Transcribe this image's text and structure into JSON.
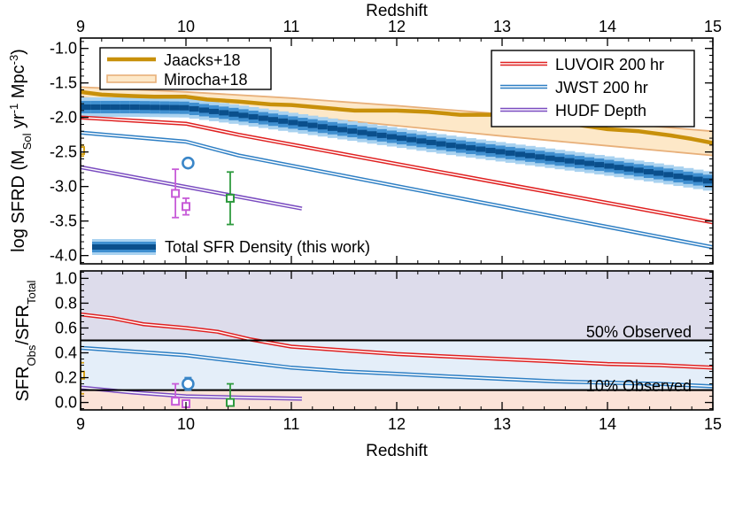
{
  "chart_data": [
    {
      "type": "line",
      "panel": "top",
      "title": "",
      "top_axis_label": "Redshift",
      "ylabel_parts": {
        "main": "log SFRD (M",
        "sub": "Sol",
        "mid": " yr",
        "sup1": "-1",
        "mid2": " Mpc",
        "sup2": "-3",
        "end": ")"
      },
      "xlim": [
        9,
        15
      ],
      "ylim": [
        -4.12,
        -0.85
      ],
      "x_ticks": [
        9,
        10,
        11,
        12,
        13,
        14,
        15
      ],
      "x_tick_labels": [
        "9",
        "10",
        "11",
        "12",
        "13",
        "14",
        "15"
      ],
      "y_ticks": [
        -1.0,
        -1.5,
        -2.0,
        -2.5,
        -3.0,
        -3.5,
        -4.0
      ],
      "y_tick_labels": [
        "-1.0",
        "-1.5",
        "-2.0",
        "-2.5",
        "-3.0",
        "-3.5",
        "-4.0"
      ],
      "legend_left": [
        {
          "label": "Jaacks+18",
          "color": "#c8900a",
          "style": "thick"
        },
        {
          "label": "Mirocha+18",
          "color": "#e8b07a",
          "style": "band"
        }
      ],
      "legend_right": [
        {
          "label": "LUVOIR 200 hr",
          "color": "#e02020",
          "style": "double"
        },
        {
          "label": "JWST 200 hr",
          "color": "#2e7fc4",
          "style": "double"
        },
        {
          "label": "HUDF Depth",
          "color": "#7a4cc0",
          "style": "double"
        }
      ],
      "legend_bottom": {
        "label": "Total SFR Density (this work)",
        "style": "blue-band"
      },
      "series": [
        {
          "name": "Total SFR Density (this work)",
          "x": [
            9.0,
            9.5,
            10.0,
            10.5,
            11.0,
            11.5,
            12.0,
            12.5,
            13.0,
            13.5,
            14.0,
            14.5,
            15.0
          ],
          "values": [
            -1.85,
            -1.85,
            -1.86,
            -1.96,
            -2.07,
            -2.18,
            -2.29,
            -2.4,
            -2.5,
            -2.6,
            -2.7,
            -2.81,
            -2.93
          ]
        },
        {
          "name": "Jaacks+18",
          "x": [
            9.0,
            9.2,
            9.5,
            9.7,
            10.0,
            10.2,
            10.5,
            10.8,
            11.0,
            11.3,
            11.6,
            12.0,
            12.3,
            12.6,
            13.0,
            13.3,
            13.6,
            14.0,
            14.3,
            14.6,
            14.8,
            15.0
          ],
          "values": [
            -1.63,
            -1.67,
            -1.69,
            -1.7,
            -1.7,
            -1.74,
            -1.77,
            -1.81,
            -1.82,
            -1.86,
            -1.9,
            -1.9,
            -1.92,
            -1.96,
            -1.96,
            -2.01,
            -2.08,
            -2.17,
            -2.2,
            -2.26,
            -2.31,
            -2.37
          ]
        },
        {
          "name": "Mirocha+18 (upper)",
          "x": [
            9.0,
            10.0,
            11.0,
            12.0,
            13.0,
            14.0,
            15.0
          ],
          "values": [
            -1.56,
            -1.63,
            -1.72,
            -1.83,
            -1.95,
            -2.07,
            -2.2
          ]
        },
        {
          "name": "Mirocha+18 (lower)",
          "x": [
            9.0,
            10.0,
            11.0,
            12.0,
            13.0,
            14.0,
            15.0
          ],
          "values": [
            -1.71,
            -1.82,
            -1.97,
            -2.12,
            -2.27,
            -2.41,
            -2.55
          ]
        },
        {
          "name": "LUVOIR 200 hr",
          "x": [
            9.0,
            10.0,
            10.5,
            15.0
          ],
          "values": [
            -2.0,
            -2.09,
            -2.25,
            -3.52
          ]
        },
        {
          "name": "JWST 200 hr",
          "x": [
            9.0,
            10.0,
            10.5,
            15.0
          ],
          "values": [
            -2.22,
            -2.35,
            -2.55,
            -3.88
          ]
        },
        {
          "name": "HUDF Depth",
          "x": [
            9.0,
            11.1
          ],
          "values": [
            -2.72,
            -3.32
          ]
        }
      ],
      "observations": [
        {
          "name": "obs-edge",
          "x": 9.0,
          "y": -2.48,
          "yerr": [
            0.08,
            0.08
          ],
          "marker": "square",
          "color": "#d4a017"
        },
        {
          "name": "obs-circle",
          "x": 10.02,
          "y": -2.66,
          "yerr": [
            0,
            0
          ],
          "marker": "circle",
          "color": "#3a86c8"
        },
        {
          "name": "obs-magenta-1",
          "x": 9.9,
          "y": -3.1,
          "yerr": [
            0.35,
            0.35
          ],
          "marker": "square",
          "color": "#c75bd8"
        },
        {
          "name": "obs-magenta-2",
          "x": 10.0,
          "y": -3.29,
          "yerr": [
            0.12,
            0.12
          ],
          "marker": "square",
          "color": "#c75bd8"
        },
        {
          "name": "obs-green",
          "x": 10.42,
          "y": -3.17,
          "yerr": [
            0.38,
            0.38
          ],
          "marker": "square",
          "color": "#2e9a3e"
        }
      ],
      "colors": {
        "jaacks": "#c8900a",
        "mirocha": "#e8b07a",
        "mirocha_fill": "#fde8c8",
        "luvoir": "#e02020",
        "jwst": "#2e7fc4",
        "hudf": "#7a4cc0",
        "band_dark": "#0a4f8c",
        "band_mid": "#3f8fd0",
        "band_light": "#a9d2f0"
      }
    },
    {
      "type": "line",
      "panel": "bottom",
      "xlabel": "Redshift",
      "ylabel_parts": {
        "a": "SFR",
        "a_sub": "Obs",
        "b": "/SFR",
        "b_sub": "Total"
      },
      "xlim": [
        9,
        15
      ],
      "ylim": [
        -0.06,
        1.06
      ],
      "x_ticks": [
        9,
        10,
        11,
        12,
        13,
        14,
        15
      ],
      "x_tick_labels": [
        "9",
        "10",
        "11",
        "12",
        "13",
        "14",
        "15"
      ],
      "y_ticks": [
        0.0,
        0.2,
        0.4,
        0.6,
        0.8,
        1.0
      ],
      "y_tick_labels": [
        "0.0",
        "0.2",
        "0.4",
        "0.6",
        "0.8",
        "1.0"
      ],
      "threshold_lines": [
        0.5,
        0.1
      ],
      "annotations": {
        "fifty": "50% Observed",
        "ten": "10% Observed"
      },
      "region_colors": {
        "upper": "#dddceb",
        "middle": "#e4eef9",
        "lower": "#fbe3d8"
      },
      "series": [
        {
          "name": "LUVOIR 200 hr",
          "x": [
            9.0,
            9.3,
            9.6,
            10.0,
            10.3,
            10.6,
            11.0,
            11.5,
            12.0,
            12.5,
            13.0,
            13.5,
            14.0,
            14.5,
            15.0
          ],
          "values": [
            0.71,
            0.68,
            0.63,
            0.6,
            0.57,
            0.51,
            0.45,
            0.42,
            0.39,
            0.37,
            0.35,
            0.33,
            0.31,
            0.3,
            0.28
          ]
        },
        {
          "name": "JWST 200 hr",
          "x": [
            9.0,
            9.5,
            10.0,
            10.5,
            11.0,
            11.5,
            12.0,
            12.5,
            13.0,
            13.5,
            14.0,
            14.5,
            15.0
          ],
          "values": [
            0.44,
            0.41,
            0.38,
            0.33,
            0.28,
            0.25,
            0.23,
            0.21,
            0.19,
            0.17,
            0.16,
            0.15,
            0.13
          ]
        },
        {
          "name": "HUDF Depth",
          "x": [
            9.0,
            9.5,
            10.0,
            10.5,
            11.1
          ],
          "values": [
            0.12,
            0.08,
            0.05,
            0.04,
            0.03
          ]
        }
      ],
      "observations": [
        {
          "name": "obs-edge",
          "x": 9.0,
          "y": 0.22,
          "yerr": [
            0.15,
            0.1
          ],
          "marker": "square",
          "color": "#d4a017"
        },
        {
          "name": "obs-circle",
          "x": 10.02,
          "y": 0.15,
          "yerr": [
            0.05,
            0.05
          ],
          "marker": "circle",
          "color": "#3a86c8"
        },
        {
          "name": "obs-magenta-1",
          "x": 9.9,
          "y": 0.01,
          "yerr": [
            0.0,
            0.14
          ],
          "marker": "square",
          "color": "#c75bd8"
        },
        {
          "name": "obs-magenta-2",
          "x": 10.0,
          "y": -0.01,
          "yerr": [
            0.0,
            0.0
          ],
          "marker": "square",
          "color": "#c75bd8"
        },
        {
          "name": "obs-green",
          "x": 10.42,
          "y": 0.0,
          "yerr": [
            0.0,
            0.15
          ],
          "marker": "square",
          "color": "#2e9a3e"
        }
      ]
    }
  ]
}
